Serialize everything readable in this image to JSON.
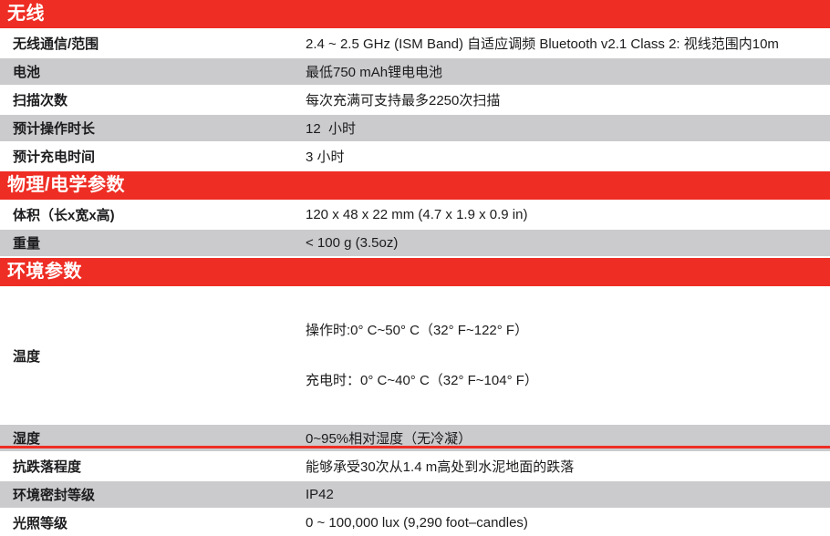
{
  "accent_color": "#ee2d24",
  "row_alt_color": "#cbcbcd",
  "sections": [
    {
      "title": "无线",
      "rows": [
        {
          "label": "无线通信/范围",
          "value": "2.4 ~ 2.5 GHz (ISM Band) 自适应调频 Bluetooth v2.1 Class 2: 视线范围内10m"
        },
        {
          "label": "电池",
          "value": "最低750 mAh锂电电池"
        },
        {
          "label": "扫描次数",
          "value": "每次充满可支持最多2250次扫描"
        },
        {
          "label": "预计操作时长",
          "value": "12  小时"
        },
        {
          "label": "预计充电时间",
          "value": "3 小时"
        }
      ]
    },
    {
      "title": "物理/电学参数",
      "rows": [
        {
          "label": "体积（长x宽x高)",
          "value": "120 x 48 x 22 mm (4.7 x 1.9 x 0.9 in)"
        },
        {
          "label": "重量",
          "value": "< 100 g (3.5oz)"
        }
      ]
    },
    {
      "title": "环境参数",
      "rows": [
        {
          "label": "温度",
          "value": "操作时:0° C~50° C（32° F~122° F）",
          "value2": "充电时：0° C~40° C（32° F~104° F）"
        },
        {
          "label": "湿度",
          "value": "0~95%相对湿度（无冷凝）"
        },
        {
          "label": "抗跌落程度",
          "value": "能够承受30次从1.4 m高处到水泥地面的跌落"
        },
        {
          "label": "环境密封等级",
          "value": "IP42"
        },
        {
          "label": "光照等级",
          "value": "0 ~ 100,000 lux (9,290 foot–candles)"
        }
      ]
    }
  ]
}
